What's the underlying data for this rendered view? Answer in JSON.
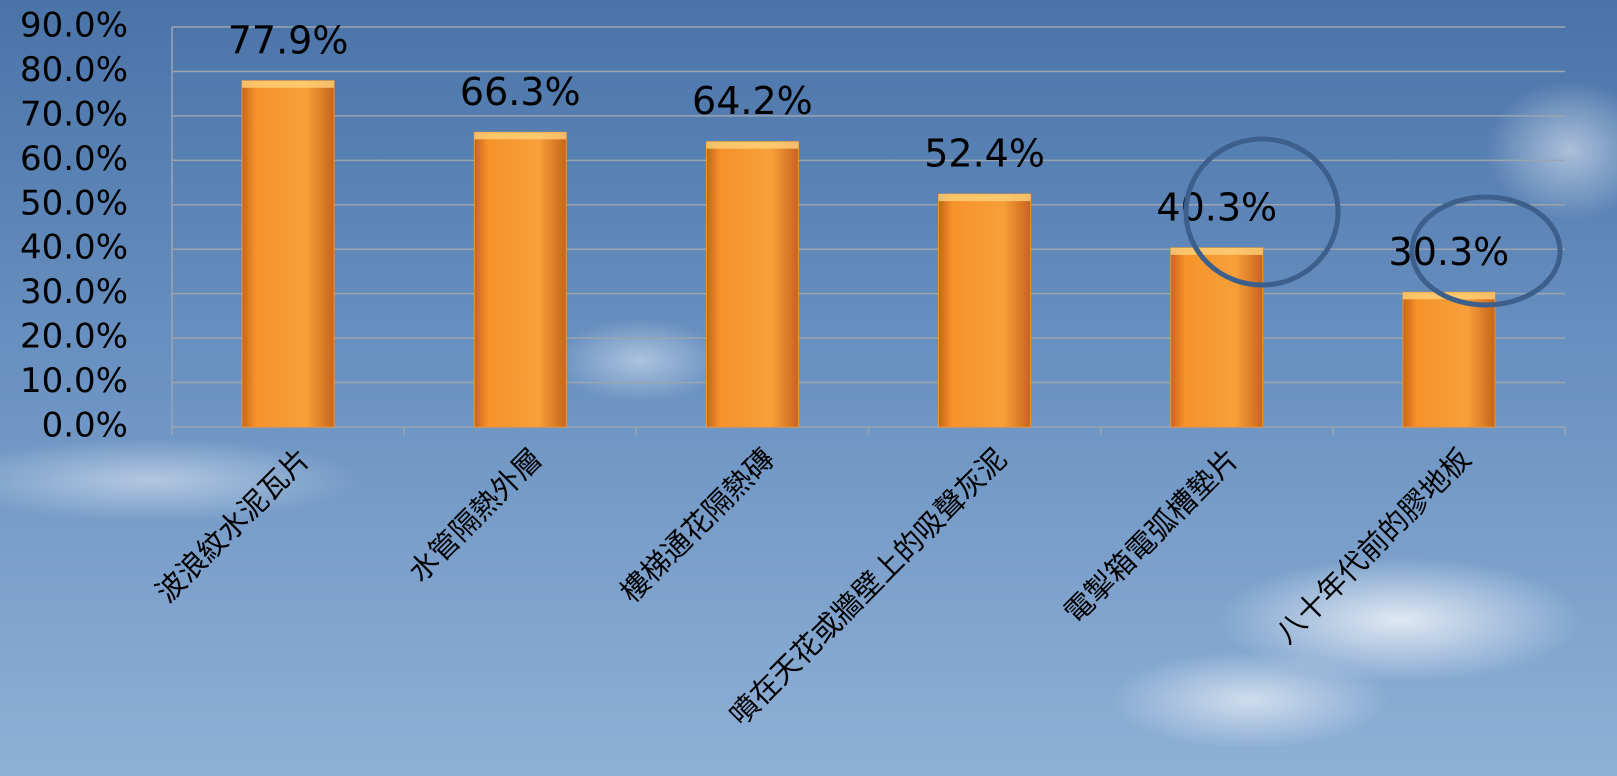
{
  "chart_data": {
    "type": "bar",
    "categories": [
      "波浪紋水泥瓦片",
      "水管隔熱外層",
      "樓梯通花隔熱磚",
      "噴在天花或牆壁上的吸聲灰泥",
      "電掣箱電弧槽墊片",
      "八十年代前的膠地板"
    ],
    "values": [
      77.9,
      66.3,
      64.2,
      52.4,
      40.3,
      30.3
    ],
    "value_labels": [
      "77.9%",
      "66.3%",
      "64.2%",
      "52.4%",
      "40.3%",
      "30.3%"
    ],
    "color": "#f5922a",
    "ylim": [
      0,
      90
    ],
    "yticks": [
      {
        "value": 0,
        "label": "0.0%"
      },
      {
        "value": 10,
        "label": "10.0%"
      },
      {
        "value": 20,
        "label": "20.0%"
      },
      {
        "value": 30,
        "label": "30.0%"
      },
      {
        "value": 40,
        "label": "40.0%"
      },
      {
        "value": 50,
        "label": "50.0%"
      },
      {
        "value": 60,
        "label": "60.0%"
      },
      {
        "value": 70,
        "label": "70.0%"
      },
      {
        "value": 80,
        "label": "80.0%"
      },
      {
        "value": 90,
        "label": "90.0%"
      }
    ],
    "grid": true
  }
}
